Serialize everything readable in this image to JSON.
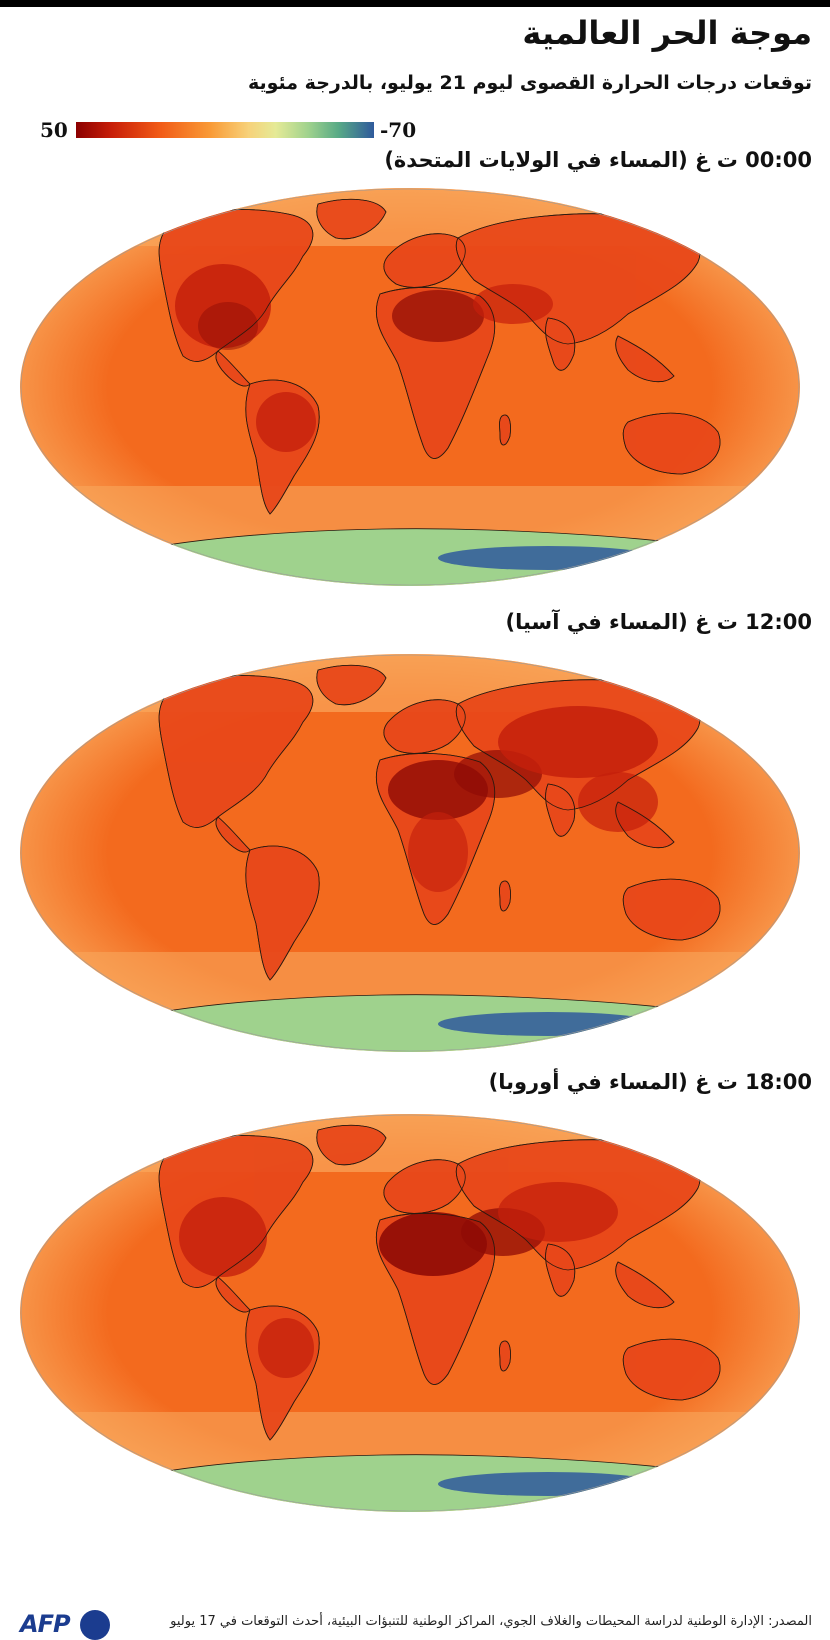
{
  "title": "موجة الحر العالمية",
  "subtitle": "توقعات درجات الحرارة القصوى ليوم 21 يوليو، بالدرجة مئوية",
  "scale": {
    "max_label": "50",
    "min_label": "-70",
    "colors": [
      "#8b0000",
      "#f15a16",
      "#f7d27a",
      "#9fd28d",
      "#2f5a9c"
    ]
  },
  "panels": [
    {
      "label": "00:00 ت غ (المساء في الولايات المتحدة)",
      "hot_region": "americas"
    },
    {
      "label": "12:00 ت غ (المساء في آسيا)",
      "hot_region": "asia"
    },
    {
      "label": "18:00 ت غ (المساء في أوروبا)",
      "hot_region": "europe-africa"
    }
  ],
  "colors": {
    "ocean": "#f36a1e",
    "ocean_cool": "#f9a75b",
    "land_hot": "#c4200c",
    "land_very_hot": "#8f0b05",
    "antarctica": "#9fd28d",
    "antarctica_cold": "#2f5a9c"
  },
  "footer": {
    "source": "المصدر: الإدارة الوطنية لدراسة المحيطات والغلاف الجوي، المراكز الوطنية للتنبؤات البيئية، أحدث التوقعات في 17 يوليو",
    "logo_text": "AFP"
  }
}
